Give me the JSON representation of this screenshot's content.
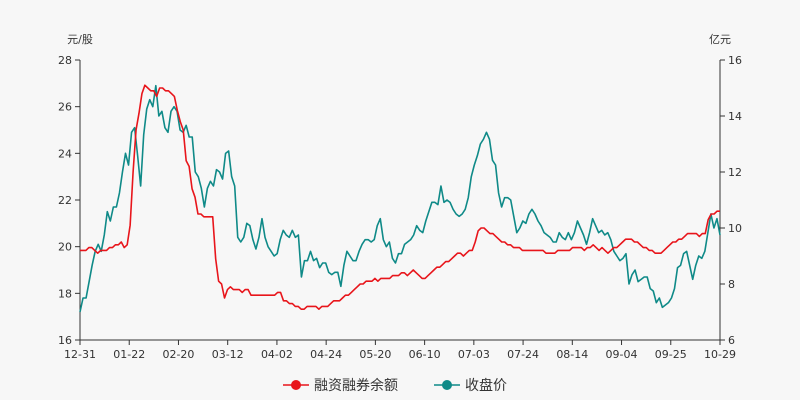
{
  "chart_data": {
    "type": "line",
    "left_unit": "元/股",
    "right_unit": "亿元",
    "x_ticks": [
      "12-31",
      "01-22",
      "02-20",
      "03-12",
      "04-02",
      "04-24",
      "05-20",
      "06-10",
      "07-03",
      "07-24",
      "08-14",
      "09-04",
      "09-25",
      "10-29"
    ],
    "y_left": {
      "min": 16,
      "max": 28,
      "ticks": [
        16,
        18,
        20,
        22,
        24,
        26,
        28
      ]
    },
    "y_right": {
      "min": 6,
      "max": 16,
      "ticks": [
        6,
        8,
        10,
        12,
        14,
        16
      ]
    },
    "legend_position": "bottom",
    "series": [
      {
        "name": "融资融券余额",
        "axis": "right",
        "color": "#e8151b",
        "values": [
          9.2,
          9.2,
          9.2,
          9.3,
          9.3,
          9.2,
          9.1,
          9.2,
          9.2,
          9.2,
          9.3,
          9.3,
          9.4,
          9.4,
          9.5,
          9.3,
          9.4,
          10.1,
          12,
          13.5,
          14.1,
          14.8,
          15.1,
          15,
          14.9,
          14.9,
          14.7,
          15,
          15,
          14.9,
          14.9,
          14.8,
          14.7,
          14.2,
          13.8,
          13.5,
          12.4,
          12.2,
          11.4,
          11.1,
          10.5,
          10.5,
          10.4,
          10.4,
          10.4,
          10.4,
          8.9,
          8.1,
          8,
          7.5,
          7.8,
          7.9,
          7.8,
          7.8,
          7.8,
          7.7,
          7.8,
          7.8,
          7.6,
          7.6,
          7.6,
          7.6,
          7.6,
          7.6,
          7.6,
          7.6,
          7.6,
          7.7,
          7.7,
          7.4,
          7.4,
          7.3,
          7.3,
          7.2,
          7.2,
          7.1,
          7.1,
          7.2,
          7.2,
          7.2,
          7.2,
          7.1,
          7.2,
          7.2,
          7.2,
          7.3,
          7.4,
          7.4,
          7.4,
          7.5,
          7.6,
          7.6,
          7.7,
          7.8,
          7.9,
          8,
          8,
          8.1,
          8.1,
          8.1,
          8.2,
          8.1,
          8.2,
          8.2,
          8.2,
          8.2,
          8.3,
          8.3,
          8.3,
          8.4,
          8.4,
          8.3,
          8.4,
          8.5,
          8.4,
          8.3,
          8.2,
          8.2,
          8.3,
          8.4,
          8.5,
          8.6,
          8.6,
          8.7,
          8.8,
          8.8,
          8.9,
          9,
          9.1,
          9.1,
          9,
          9.1,
          9.2,
          9.2,
          9.5,
          9.9,
          10,
          10,
          9.9,
          9.8,
          9.8,
          9.7,
          9.6,
          9.5,
          9.5,
          9.4,
          9.4,
          9.3,
          9.3,
          9.3,
          9.2,
          9.2,
          9.2,
          9.2,
          9.2,
          9.2,
          9.2,
          9.2,
          9.1,
          9.1,
          9.1,
          9.1,
          9.2,
          9.2,
          9.2,
          9.2,
          9.2,
          9.3,
          9.3,
          9.3,
          9.3,
          9.2,
          9.3,
          9.3,
          9.4,
          9.3,
          9.2,
          9.3,
          9.2,
          9.1,
          9.2,
          9.3,
          9.3,
          9.4,
          9.5,
          9.6,
          9.6,
          9.6,
          9.5,
          9.5,
          9.4,
          9.3,
          9.3,
          9.2,
          9.2,
          9.1,
          9.1,
          9.1,
          9.2,
          9.3,
          9.4,
          9.5,
          9.5,
          9.6,
          9.6,
          9.7,
          9.8,
          9.8,
          9.8,
          9.8,
          9.7,
          9.8,
          9.8,
          10.3,
          10.5,
          10.5,
          10.6,
          10.6
        ]
      },
      {
        "name": "收盘价",
        "axis": "left",
        "color": "#0f8a88",
        "values": [
          17.2,
          17.8,
          17.8,
          18.5,
          19.2,
          19.8,
          20.1,
          19.8,
          20.5,
          21.5,
          21.1,
          21.7,
          21.7,
          22.3,
          23.2,
          24,
          23.5,
          24.9,
          25.1,
          23.9,
          22.6,
          24.8,
          25.9,
          26.3,
          26,
          26.9,
          25.6,
          25.8,
          25.1,
          24.9,
          25.8,
          26,
          25.8,
          25,
          24.9,
          25.2,
          24.7,
          24.7,
          23.2,
          23,
          22.5,
          21.7,
          22.5,
          22.8,
          22.6,
          23.3,
          23.2,
          22.9,
          24,
          24.1,
          23,
          22.6,
          20.4,
          20.2,
          20.4,
          21,
          20.9,
          20.3,
          19.9,
          20.4,
          21.2,
          20.4,
          20,
          19.8,
          19.6,
          19.7,
          20.3,
          20.7,
          20.5,
          20.4,
          20.7,
          20.4,
          20.5,
          18.7,
          19.4,
          19.4,
          19.8,
          19.4,
          19.5,
          19.1,
          19.3,
          19.3,
          18.9,
          18.8,
          18.9,
          18.9,
          18.3,
          19.2,
          19.8,
          19.6,
          19.4,
          19.4,
          19.8,
          20.1,
          20.3,
          20.3,
          20.2,
          20.3,
          20.9,
          21.2,
          20.3,
          20,
          20.2,
          19.5,
          19.3,
          19.7,
          19.7,
          20.1,
          20.2,
          20.3,
          20.5,
          20.9,
          20.7,
          20.6,
          21.1,
          21.5,
          21.9,
          21.9,
          21.8,
          22.6,
          21.9,
          22,
          21.9,
          21.6,
          21.4,
          21.3,
          21.4,
          21.6,
          22.1,
          23,
          23.5,
          23.9,
          24.4,
          24.6,
          24.9,
          24.6,
          23.7,
          23.5,
          22.3,
          21.7,
          22.1,
          22.1,
          22,
          21.3,
          20.6,
          20.8,
          21.1,
          21,
          21.4,
          21.6,
          21.4,
          21.1,
          20.9,
          20.6,
          20.5,
          20.4,
          20.2,
          20.2,
          20.6,
          20.4,
          20.3,
          20.6,
          20.3,
          20.6,
          21.1,
          20.8,
          20.5,
          20.1,
          20.6,
          21.2,
          20.9,
          20.6,
          20.7,
          20.5,
          20.6,
          20.3,
          19.8,
          19.6,
          19.4,
          19.5,
          19.7,
          18.4,
          18.8,
          19,
          18.5,
          18.6,
          18.7,
          18.7,
          18.2,
          18.1,
          17.6,
          17.8,
          17.4,
          17.5,
          17.6,
          17.8,
          18.2,
          19.1,
          19.2,
          19.7,
          19.8,
          19.2,
          18.6,
          19.2,
          19.6,
          19.5,
          19.8,
          20.6,
          21.4,
          20.8,
          21.2,
          20.5
        ]
      }
    ]
  }
}
